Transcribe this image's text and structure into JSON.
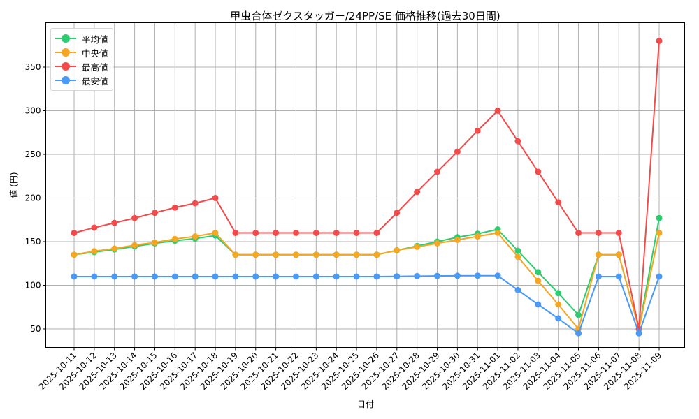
{
  "chart_data": {
    "type": "line",
    "title": "甲虫合体ゼクスタッガー/24PP/SE 価格推移(過去30日間)",
    "xlabel": "日付",
    "ylabel": "値 (円)",
    "ylim": [
      28,
      395
    ],
    "yticks": [
      50,
      100,
      150,
      200,
      250,
      300,
      350
    ],
    "grid": true,
    "legend_position": "upper left",
    "x": [
      "2025-10-11",
      "2025-10-12",
      "2025-10-13",
      "2025-10-14",
      "2025-10-15",
      "2025-10-16",
      "2025-10-17",
      "2025-10-18",
      "2025-10-19",
      "2025-10-20",
      "2025-10-21",
      "2025-10-22",
      "2025-10-23",
      "2025-10-24",
      "2025-10-25",
      "2025-10-26",
      "2025-10-27",
      "2025-10-28",
      "2025-10-29",
      "2025-10-30",
      "2025-10-31",
      "2025-11-01",
      "2025-11-02",
      "2025-11-03",
      "2025-11-04",
      "2025-11-05",
      "2025-11-06",
      "2025-11-07",
      "2025-11-08",
      "2025-11-09"
    ],
    "series": [
      {
        "name": "平均値",
        "color": "#2ecc71",
        "values": [
          135,
          138,
          141,
          144.5,
          148,
          151,
          153.5,
          157,
          135,
          135,
          135,
          135,
          135,
          135,
          135,
          135,
          140,
          145,
          150,
          155,
          159,
          164,
          139.5,
          115,
          91,
          66,
          135,
          135,
          50,
          177
        ]
      },
      {
        "name": "中央値",
        "color": "#f5a623",
        "values": [
          135,
          139,
          142,
          146,
          149,
          153,
          156,
          160,
          135,
          135,
          135,
          135,
          135,
          135,
          135,
          135,
          140,
          144,
          148,
          152,
          156,
          160,
          132.5,
          105,
          78,
          50,
          135,
          135,
          50,
          160
        ]
      },
      {
        "name": "最高値",
        "color": "#f24b4b",
        "values": [
          160,
          166,
          171.5,
          177,
          183,
          189,
          194,
          200,
          160,
          160,
          160,
          160,
          160,
          160,
          160,
          160,
          183,
          207,
          230,
          253,
          277,
          300,
          265,
          230,
          195,
          160,
          160,
          160,
          50,
          380
        ]
      },
      {
        "name": "最安値",
        "color": "#4a9af5",
        "values": [
          110,
          110,
          110,
          110,
          110,
          110,
          110,
          110,
          110,
          110,
          110,
          110,
          110,
          110,
          110,
          110,
          110.2,
          110.5,
          110.7,
          110.9,
          111,
          111,
          94.5,
          78,
          62,
          45,
          110,
          110,
          45,
          110
        ]
      }
    ]
  }
}
